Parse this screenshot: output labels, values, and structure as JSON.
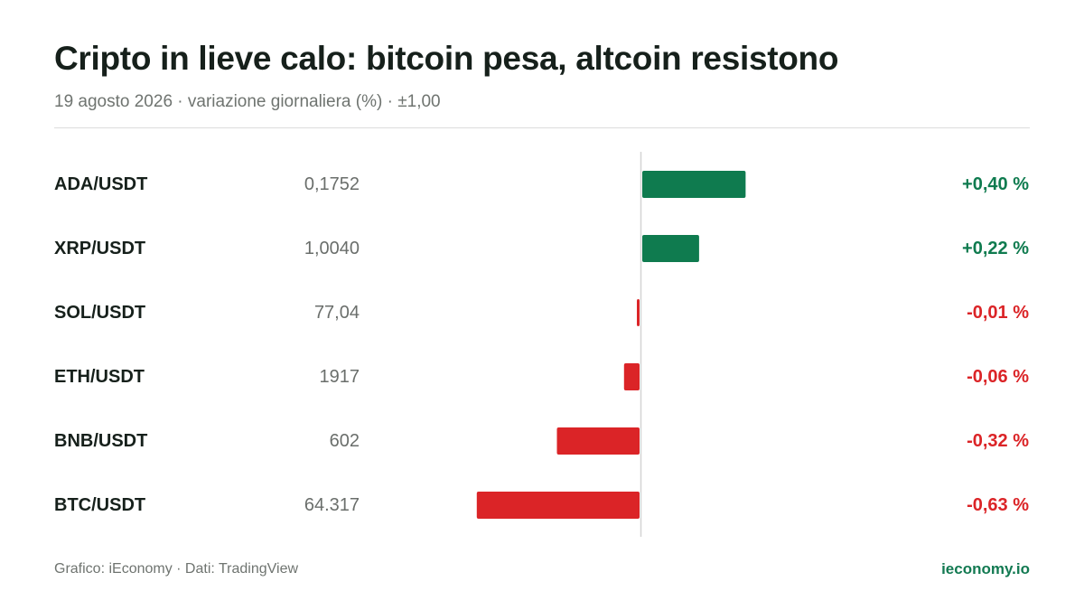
{
  "header": {
    "title": "Cripto in lieve calo: bitcoin pesa, altcoin resistono",
    "subtitle": "19 agosto 2026 · variazione giornaliera (%) · ±1,00"
  },
  "footer": {
    "credit": "Grafico: iEconomy · Dati: TradingView",
    "site": "ieconomy.io"
  },
  "colors": {
    "positive": "#0f7b4f",
    "negative": "#db2427",
    "axis": "#d4d4d4"
  },
  "chart_data": {
    "type": "bar",
    "orientation": "horizontal",
    "title": "Cripto in lieve calo: bitcoin pesa, altcoin resistono",
    "subtitle": "19 agosto 2026 · variazione giornaliera (%) · ±1,00",
    "unit": "%",
    "xlim": [
      -1.0,
      1.0
    ],
    "grid": false,
    "categories": [
      "ADA/USDT",
      "XRP/USDT",
      "SOL/USDT",
      "ETH/USDT",
      "BNB/USDT",
      "BTC/USDT"
    ],
    "prices": [
      "0,1752",
      "1,0040",
      "77,04",
      "1917",
      "602",
      "64.317"
    ],
    "values": [
      0.4,
      0.22,
      -0.01,
      -0.06,
      -0.32,
      -0.63
    ],
    "value_labels": [
      "+0,40 %",
      "+0,22 %",
      "-0,01 %",
      "-0,06 %",
      "-0,32 %",
      "-0,63 %"
    ]
  }
}
